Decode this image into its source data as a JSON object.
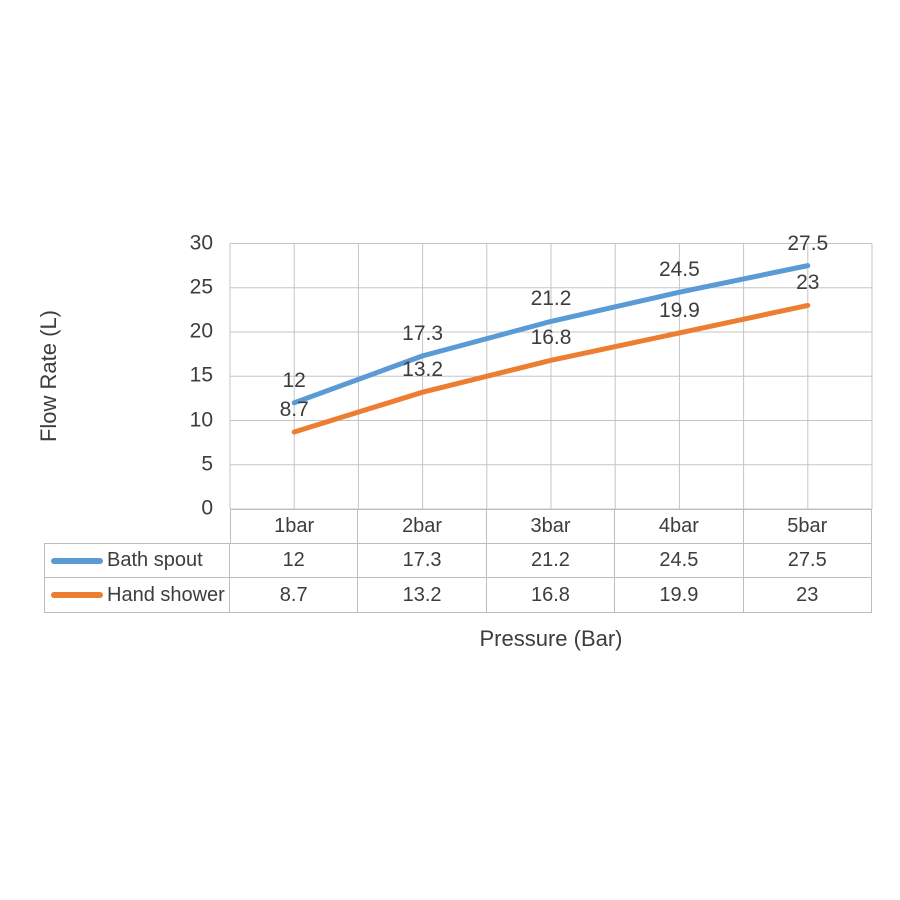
{
  "chart_data": {
    "type": "line",
    "categories": [
      "1bar",
      "2bar",
      "3bar",
      "4bar",
      "5bar"
    ],
    "series": [
      {
        "name": "Bath spout",
        "color": "#5B9BD5",
        "values": [
          12,
          17.3,
          21.2,
          24.5,
          27.5
        ]
      },
      {
        "name": "Hand shower",
        "color": "#ED7D31",
        "values": [
          8.7,
          13.2,
          16.8,
          19.9,
          23
        ]
      }
    ],
    "xlabel": "Pressure (Bar)",
    "ylabel": "Flow Rate (L)",
    "ylim": [
      0,
      30
    ],
    "yticks": [
      30,
      25,
      20,
      15,
      10,
      5,
      0
    ],
    "x_gridlines_per_category": 2,
    "grid": true,
    "data_labels": true,
    "legend_position": "table-left",
    "data_table": true
  },
  "colors": {
    "background": "#ffffff",
    "gridline": "#c5c5c5",
    "table_border": "#bdbdbd",
    "text": "#3d3d3d"
  }
}
